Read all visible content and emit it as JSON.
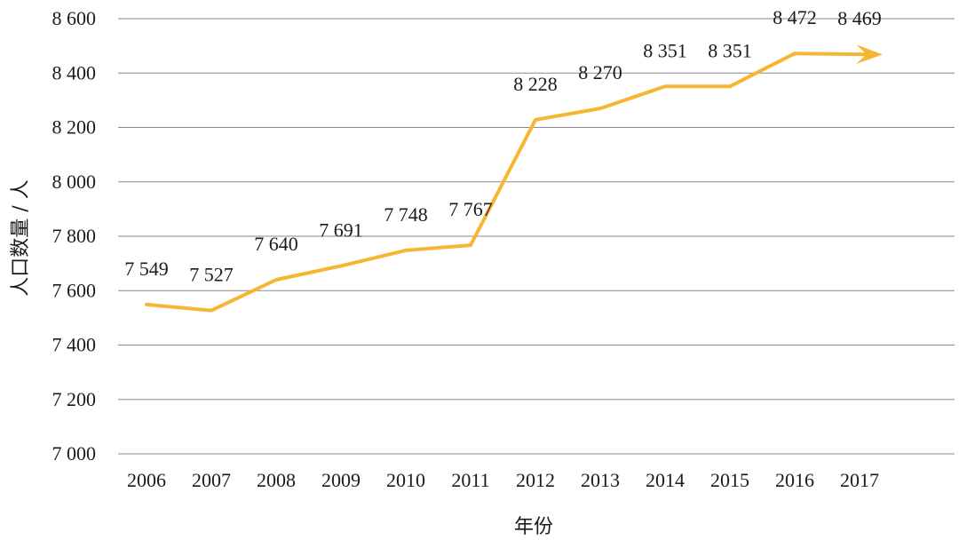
{
  "chart_data": {
    "type": "line",
    "title": "",
    "xlabel": "年份",
    "ylabel": "人口数量 / 人",
    "ylim": [
      7000,
      8600
    ],
    "yticks": [
      7000,
      7200,
      7400,
      7600,
      7800,
      8000,
      8200,
      8400,
      8600
    ],
    "ytick_labels": [
      "7 000",
      "7 200",
      "7 400",
      "7 600",
      "7 800",
      "8 000",
      "8 200",
      "8 400",
      "8 600"
    ],
    "categories": [
      "2006",
      "2007",
      "2008",
      "2009",
      "2010",
      "2011",
      "2012",
      "2013",
      "2014",
      "2015",
      "2016",
      "2017"
    ],
    "values": [
      7549,
      7527,
      7640,
      7691,
      7748,
      7767,
      8228,
      8270,
      8351,
      8351,
      8472,
      8469
    ],
    "value_labels": [
      "7 549",
      "7 527",
      "7 640",
      "7 691",
      "7 748",
      "7 767",
      "8 228",
      "8 270",
      "8 351",
      "8 351",
      "8 472",
      "8 469"
    ],
    "grid": true,
    "legend": "none",
    "line_color": "#F6B632",
    "line_end": "arrow"
  }
}
